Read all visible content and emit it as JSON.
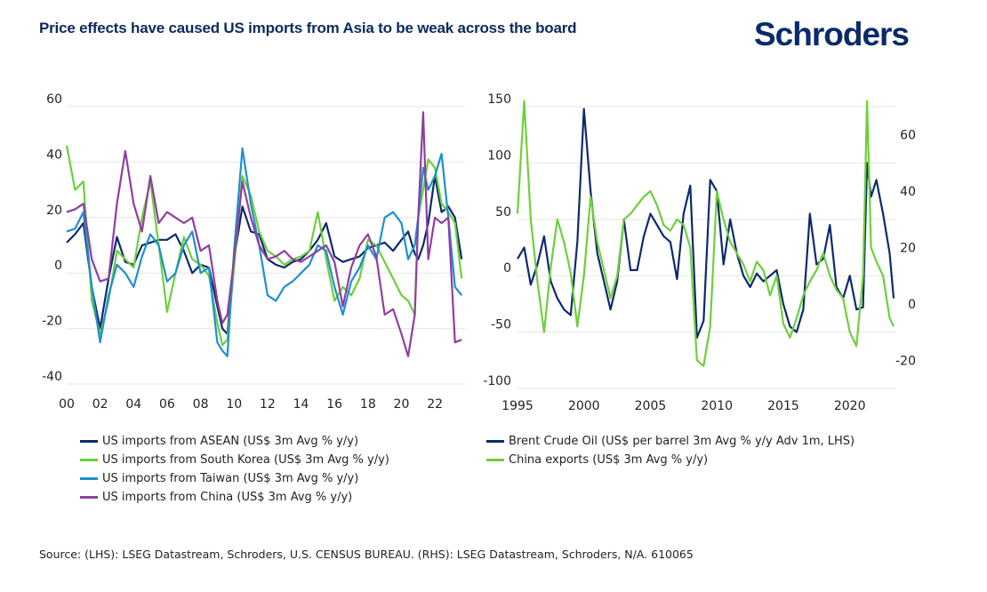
{
  "header": {
    "title": "Price effects have caused US imports from Asia to be weak across the board",
    "logo": "Schroders"
  },
  "colors": {
    "asean": "#0d2a6b",
    "korea": "#6fcf3b",
    "taiwan": "#1e8fd0",
    "china": "#8e3fa0",
    "brent": "#0d2a6b",
    "china_exports": "#6fcf3b",
    "grid": "#e6e6e6"
  },
  "chart_data": [
    {
      "type": "line",
      "title": "",
      "xlabel": "",
      "ylabel": "",
      "xlim": [
        2000,
        2023.8
      ],
      "ylim": [
        -40,
        60
      ],
      "yticks": [
        -40,
        -20,
        0,
        20,
        40,
        60
      ],
      "xtick_values": [
        2000,
        2002,
        2004,
        2006,
        2008,
        2010,
        2012,
        2014,
        2016,
        2018,
        2020,
        2022
      ],
      "xtick_labels": [
        "00",
        "02",
        "04",
        "06",
        "08",
        "10",
        "12",
        "14",
        "16",
        "18",
        "20",
        "22"
      ],
      "grid": true,
      "legend": "bottom",
      "x": [
        2000,
        2000.5,
        2001,
        2001.5,
        2002,
        2002.5,
        2003,
        2003.5,
        2004,
        2004.5,
        2005,
        2005.5,
        2006,
        2006.5,
        2007,
        2007.5,
        2008,
        2008.5,
        2009,
        2009.3,
        2009.6,
        2010,
        2010.5,
        2011,
        2011.5,
        2012,
        2012.5,
        2013,
        2013.5,
        2014,
        2014.5,
        2015,
        2015.5,
        2016,
        2016.5,
        2017,
        2017.5,
        2018,
        2018.5,
        2019,
        2019.5,
        2020,
        2020.4,
        2020.8,
        2021,
        2021.3,
        2021.6,
        2022,
        2022.4,
        2022.8,
        2023.2,
        2023.6
      ],
      "series": [
        {
          "name": "US imports from ASEAN (US$ 3m Avg % y/y)",
          "color_key": "asean",
          "values": [
            11,
            14,
            18,
            -5,
            -20,
            -2,
            13,
            4,
            3,
            10,
            11,
            12,
            12,
            14,
            8,
            0,
            3,
            2,
            -12,
            -20,
            -22,
            5,
            24,
            15,
            14,
            5,
            3,
            2,
            4,
            5,
            8,
            12,
            18,
            6,
            4,
            5,
            6,
            9,
            10,
            11,
            8,
            12,
            15,
            7,
            5,
            10,
            18,
            35,
            22,
            24,
            20,
            5
          ]
        },
        {
          "name": "US imports from South Korea (US$ 3m Avg % y/y)",
          "color_key": "korea",
          "values": [
            46,
            30,
            33,
            -10,
            -22,
            -10,
            8,
            5,
            2,
            20,
            33,
            10,
            -14,
            0,
            13,
            5,
            3,
            -1,
            -18,
            -26,
            -24,
            2,
            35,
            28,
            15,
            8,
            6,
            3,
            5,
            6,
            8,
            22,
            5,
            -10,
            -5,
            -8,
            -2,
            12,
            10,
            4,
            -2,
            -8,
            -10,
            -15,
            20,
            30,
            41,
            38,
            25,
            22,
            18,
            -2
          ]
        },
        {
          "name": "US imports from Taiwan (US$ 3m Avg % y/y)",
          "color_key": "taiwan",
          "values": [
            15,
            16,
            22,
            -5,
            -25,
            -8,
            3,
            0,
            -5,
            6,
            14,
            10,
            -3,
            0,
            10,
            15,
            0,
            2,
            -25,
            -28,
            -30,
            8,
            45,
            25,
            10,
            -8,
            -10,
            -5,
            -3,
            0,
            3,
            10,
            8,
            -5,
            -15,
            -3,
            2,
            10,
            5,
            20,
            22,
            18,
            5,
            10,
            20,
            38,
            30,
            35,
            43,
            20,
            -5,
            -8
          ]
        },
        {
          "name": "US imports from China (US$ 3m Avg % y/y)",
          "color_key": "china",
          "values": [
            22,
            23,
            25,
            5,
            -3,
            -2,
            25,
            44,
            25,
            15,
            35,
            18,
            22,
            20,
            18,
            20,
            8,
            10,
            -10,
            -18,
            -15,
            5,
            33,
            20,
            10,
            5,
            6,
            8,
            5,
            4,
            6,
            8,
            10,
            4,
            -12,
            2,
            10,
            14,
            6,
            -15,
            -13,
            -22,
            -30,
            -15,
            20,
            58,
            5,
            20,
            18,
            20,
            -25,
            -24
          ]
        }
      ]
    },
    {
      "type": "line",
      "title": "",
      "xlabel": "",
      "ylabel": "",
      "xlim": [
        1995,
        2023.5
      ],
      "ylim_left": [
        -100,
        150
      ],
      "ylim_right": [
        -30,
        70
      ],
      "yticks_left": [
        -100,
        -50,
        0,
        50,
        100,
        150
      ],
      "yticks_right": [
        -20,
        0,
        20,
        40,
        60
      ],
      "xtick_values": [
        1995,
        2000,
        2005,
        2010,
        2015,
        2020
      ],
      "xtick_labels": [
        "1995",
        "2000",
        "2005",
        "2010",
        "2015",
        "2020"
      ],
      "grid": true,
      "legend": "bottom",
      "x": [
        1995,
        1995.5,
        1996,
        1996.5,
        1997,
        1997.5,
        1998,
        1998.5,
        1999,
        1999.5,
        2000,
        2000.5,
        2001,
        2001.5,
        2002,
        2002.5,
        2003,
        2003.5,
        2004,
        2004.5,
        2005,
        2005.5,
        2006,
        2006.5,
        2007,
        2007.5,
        2008,
        2008.5,
        2009,
        2009.5,
        2010,
        2010.5,
        2011,
        2011.5,
        2012,
        2012.5,
        2013,
        2013.5,
        2014,
        2014.5,
        2015,
        2015.5,
        2016,
        2016.5,
        2017,
        2017.5,
        2018,
        2018.5,
        2019,
        2019.5,
        2020,
        2020.5,
        2021,
        2021.3,
        2021.6,
        2022,
        2022.5,
        2023,
        2023.3
      ],
      "series": [
        {
          "name": "Brent Crude Oil (US$ per barrel 3m Avg % y/y Adv 1m, LHS)",
          "color_key": "brent",
          "axis": "left",
          "values": [
            15,
            25,
            -8,
            10,
            35,
            -5,
            -20,
            -30,
            -35,
            30,
            148,
            75,
            20,
            -5,
            -30,
            -5,
            50,
            5,
            5,
            35,
            55,
            45,
            35,
            30,
            -3,
            55,
            80,
            -55,
            -40,
            85,
            75,
            10,
            50,
            20,
            0,
            -10,
            2,
            -5,
            0,
            5,
            -25,
            -45,
            -50,
            -30,
            55,
            10,
            15,
            45,
            -10,
            -20,
            0,
            -30,
            -28,
            100,
            70,
            85,
            55,
            20,
            -20
          ]
        },
        {
          "name": "China exports (US$ 3m Avg % y/y)",
          "color_key": "china_exports",
          "axis": "right",
          "values": [
            32,
            72,
            30,
            8,
            -10,
            13,
            30,
            22,
            11,
            -8,
            10,
            38,
            22,
            12,
            2,
            10,
            30,
            32,
            35,
            38,
            40,
            35,
            28,
            26,
            30,
            28,
            20,
            -20,
            -22,
            -8,
            40,
            30,
            22,
            18,
            14,
            8,
            15,
            12,
            3,
            10,
            -7,
            -12,
            -5,
            3,
            8,
            12,
            18,
            10,
            5,
            2,
            -10,
            -15,
            10,
            72,
            20,
            15,
            10,
            -5,
            -8
          ]
        }
      ]
    }
  ],
  "legend_left": [
    {
      "label": "US imports from ASEAN (US$ 3m Avg % y/y)",
      "color_key": "asean"
    },
    {
      "label": "US imports from South Korea (US$ 3m Avg % y/y)",
      "color_key": "korea"
    },
    {
      "label": "US imports from Taiwan (US$ 3m Avg % y/y)",
      "color_key": "taiwan"
    },
    {
      "label": "US imports from China (US$ 3m Avg % y/y)",
      "color_key": "china"
    }
  ],
  "legend_right": [
    {
      "label": "Brent Crude Oil (US$ per barrel 3m Avg % y/y Adv 1m, LHS)",
      "color_key": "brent"
    },
    {
      "label": "China exports (US$ 3m Avg % y/y)",
      "color_key": "china_exports"
    }
  ],
  "footer": {
    "source": "Source: (LHS): LSEG Datastream, Schroders, U.S. CENSUS BUREAU. (RHS): LSEG Datastream, Schroders, N/A. 610065"
  }
}
